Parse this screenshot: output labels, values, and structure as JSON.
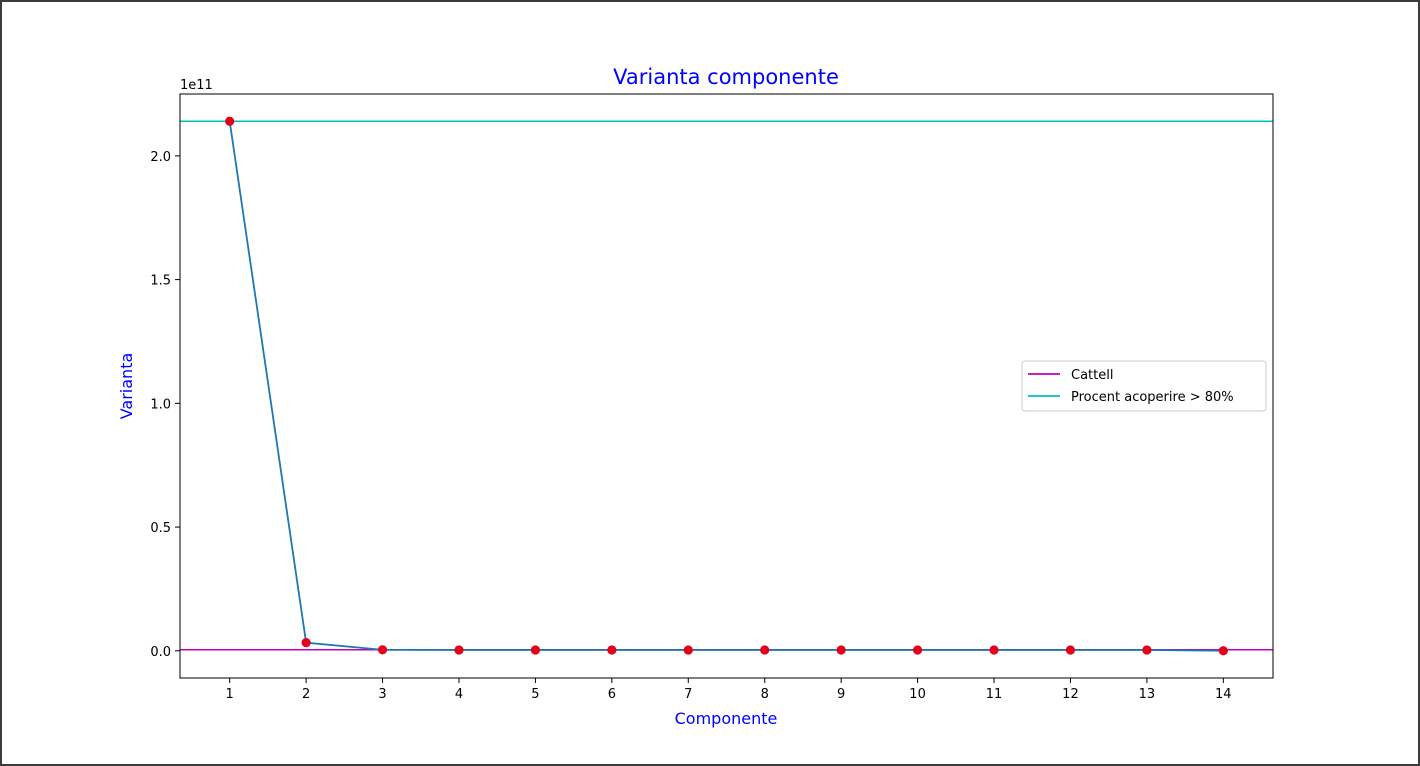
{
  "chart_data": {
    "type": "line",
    "title": "Varianta componente",
    "xlabel": "Componente",
    "ylabel": "Varianta",
    "y_offset_label": "1e11",
    "x": [
      1,
      2,
      3,
      4,
      5,
      6,
      7,
      8,
      9,
      10,
      11,
      12,
      13,
      14
    ],
    "series": [
      {
        "values": [
          2.14,
          0.033,
          0.004,
          0.003,
          0.003,
          0.003,
          0.003,
          0.003,
          0.003,
          0.003,
          0.003,
          0.003,
          0.003,
          0.0
        ],
        "color": "#1f77b4",
        "marker_color": "#e3001b"
      }
    ],
    "hlines": [
      {
        "name": "Cattell",
        "y": 0.004,
        "color": "#bf00bf"
      },
      {
        "name": "Procent acoperire > 80%",
        "y": 2.14,
        "color": "#00bfbf"
      }
    ],
    "xlim": [
      0.35,
      14.65
    ],
    "ylim": [
      -0.11,
      2.25
    ],
    "xticks": [
      "1",
      "2",
      "3",
      "4",
      "5",
      "6",
      "7",
      "8",
      "9",
      "10",
      "11",
      "12",
      "13",
      "14"
    ],
    "yticks": [
      {
        "value": 0.0,
        "label": "0.0"
      },
      {
        "value": 0.5,
        "label": "0.5"
      },
      {
        "value": 1.0,
        "label": "1.0"
      },
      {
        "value": 1.5,
        "label": "1.5"
      },
      {
        "value": 2.0,
        "label": "2.0"
      }
    ],
    "grid": false,
    "legend_position": "center-right"
  }
}
